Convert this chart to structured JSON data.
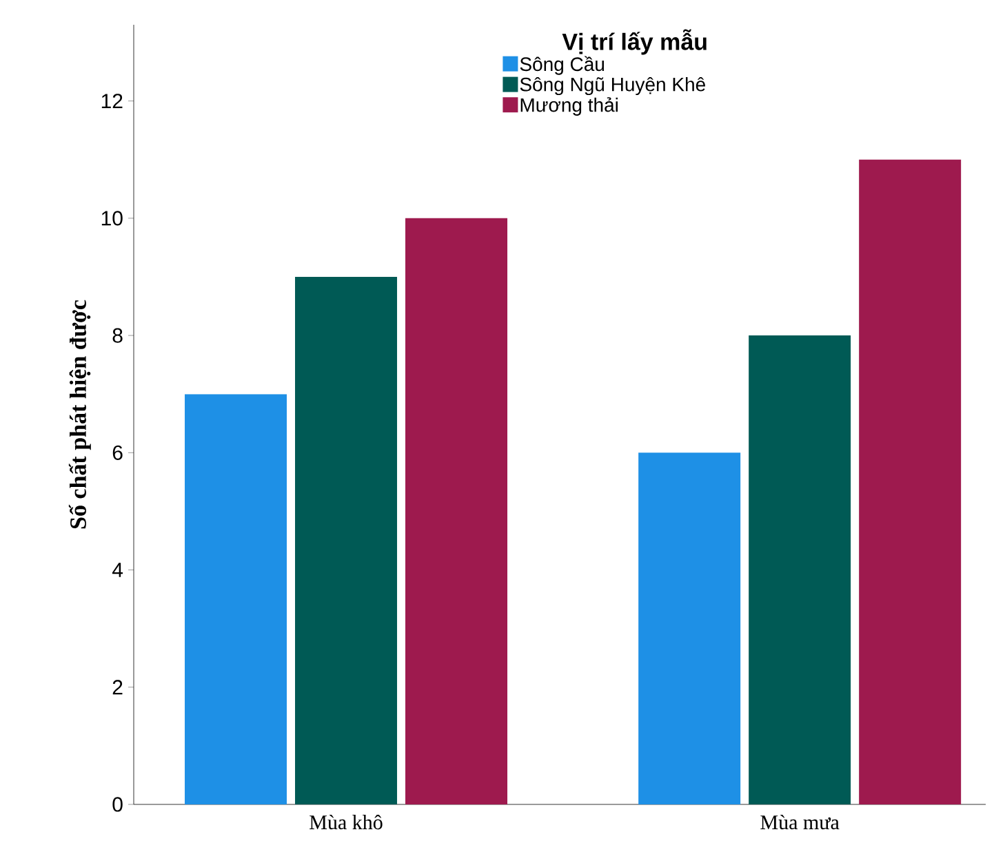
{
  "chart_data": {
    "type": "bar",
    "ylabel": "Số chất phát hiện được",
    "legend_title": "Vị trí lấy mẫu",
    "categories": [
      "Mùa khô",
      "Mùa mưa"
    ],
    "series": [
      {
        "name": "Sông Cầu",
        "color": "#1e90e6",
        "values": [
          7,
          6
        ]
      },
      {
        "name": "Sông Ngũ Huyện Khê",
        "color": "#005a55",
        "values": [
          9,
          8
        ]
      },
      {
        "name": "Mương thải",
        "color": "#9e1a4e",
        "values": [
          10,
          11
        ]
      }
    ],
    "ylim": [
      0,
      13.3
    ],
    "yticks": [
      0,
      2,
      4,
      6,
      8,
      10,
      12
    ],
    "grid": false,
    "legend": "top"
  }
}
